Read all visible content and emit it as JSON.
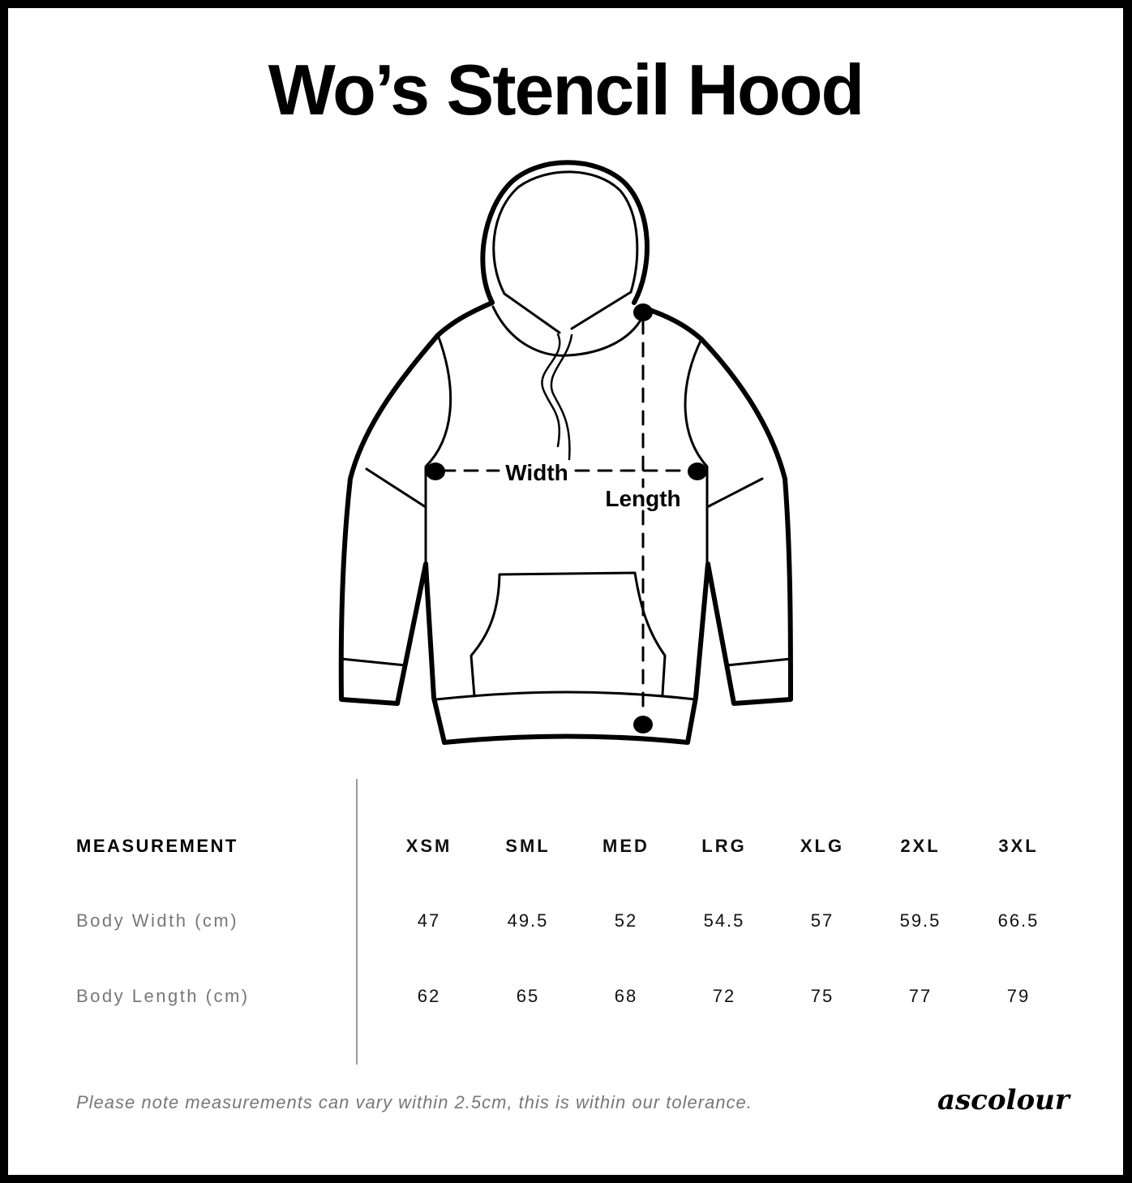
{
  "title": "Wo’s Stencil Hood",
  "diagram": {
    "width_label": "Width",
    "length_label": "Length"
  },
  "table": {
    "header": "MEASUREMENT",
    "sizes": [
      "XSM",
      "SML",
      "MED",
      "LRG",
      "XLG",
      "2XL",
      "3XL"
    ],
    "rows": [
      {
        "label": "Body Width (cm)",
        "values": [
          "47",
          "49.5",
          "52",
          "54.5",
          "57",
          "59.5",
          "66.5"
        ]
      },
      {
        "label": "Body Length (cm)",
        "values": [
          "62",
          "65",
          "68",
          "72",
          "75",
          "77",
          "79"
        ]
      }
    ]
  },
  "note": "Please note measurements can vary within 2.5cm, this is within our tolerance.",
  "logo": "ascolour"
}
